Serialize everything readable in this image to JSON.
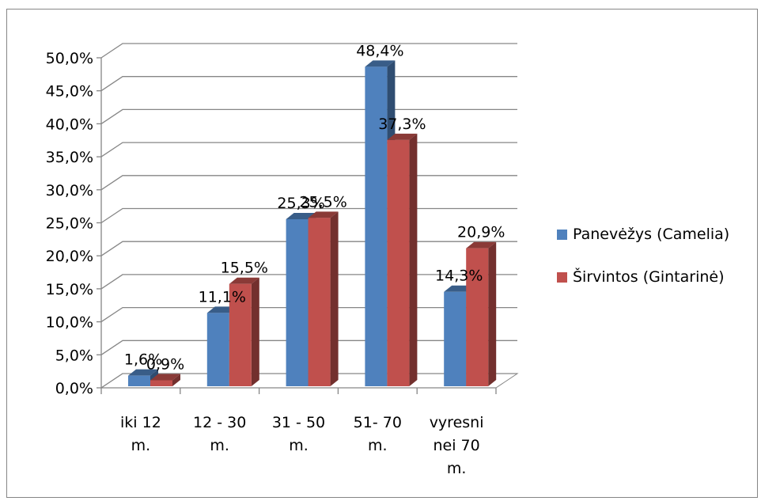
{
  "chart_data": {
    "type": "bar",
    "style": "3d-clustered-column",
    "categories": [
      [
        "iki 12",
        "m."
      ],
      [
        "12 - 30",
        "m."
      ],
      [
        "31 - 50",
        "m."
      ],
      [
        "51- 70",
        "m."
      ],
      [
        "vyresni",
        "nei 70",
        "m."
      ]
    ],
    "series": [
      {
        "name": "Panevėžys (Camelia)",
        "color": "#4F81BD",
        "values": [
          1.6,
          11.1,
          25.3,
          48.4,
          14.3
        ],
        "labels": [
          "1,6%",
          "11,1%",
          "25,3%",
          "48,4%",
          "14,3%"
        ]
      },
      {
        "name": "Širvintos (Gintarinė)",
        "color": "#C0504D",
        "values": [
          0.9,
          15.5,
          25.5,
          37.3,
          20.9
        ],
        "labels": [
          "0,9%",
          "15,5%",
          "25,5%",
          "37,3%",
          "20,9%"
        ]
      }
    ],
    "ylim": [
      0,
      50
    ],
    "yticks": [
      {
        "value": 0,
        "label": "0,0%"
      },
      {
        "value": 5,
        "label": "5,0%"
      },
      {
        "value": 10,
        "label": "10,0%"
      },
      {
        "value": 15,
        "label": "15,0%"
      },
      {
        "value": 20,
        "label": "20,0%"
      },
      {
        "value": 25,
        "label": "25,0%"
      },
      {
        "value": 30,
        "label": "30,0%"
      },
      {
        "value": 35,
        "label": "35,0%"
      },
      {
        "value": 40,
        "label": "40,0%"
      },
      {
        "value": 45,
        "label": "45,0%"
      },
      {
        "value": 50,
        "label": "50,0%"
      }
    ],
    "grid": true,
    "legend_position": "right"
  }
}
